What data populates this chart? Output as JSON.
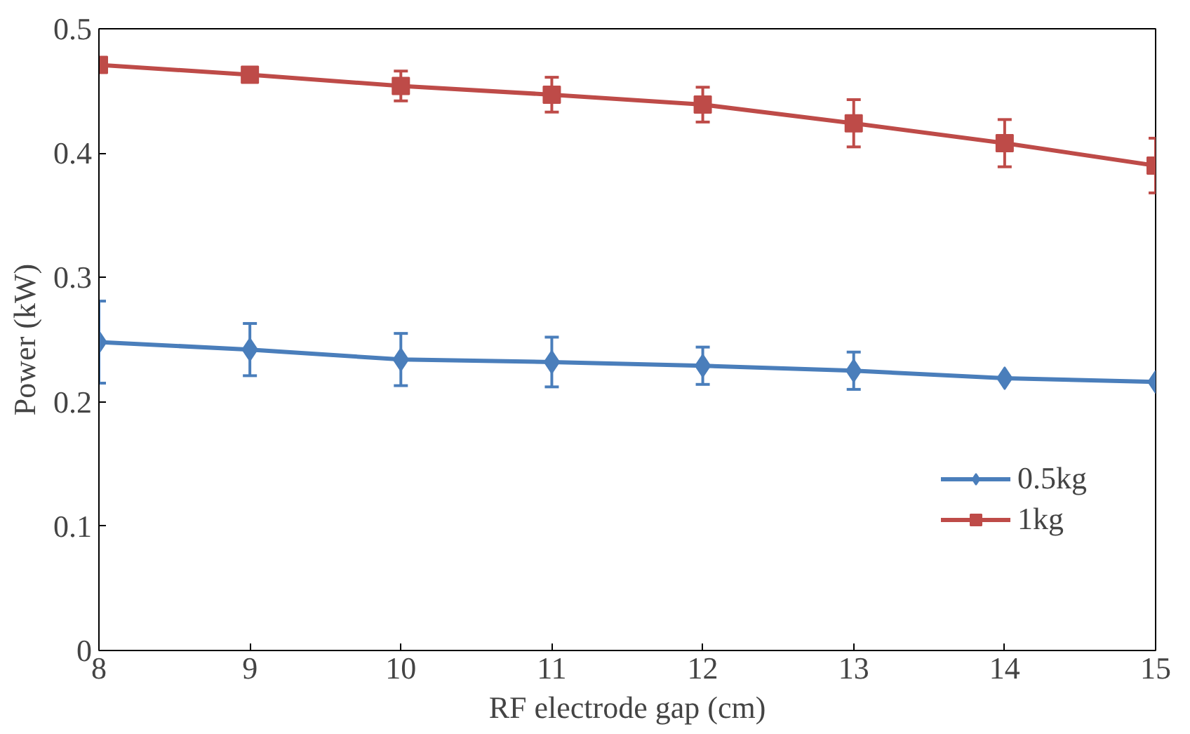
{
  "chart_data": {
    "type": "line",
    "xlabel": "RF electrode gap (cm)",
    "ylabel": "Power (kW)",
    "x": [
      8,
      9,
      10,
      11,
      12,
      13,
      14,
      15
    ],
    "xlim": [
      8,
      15
    ],
    "xticks": [
      8,
      9,
      10,
      11,
      12,
      13,
      14,
      15
    ],
    "ylim": [
      0,
      0.5
    ],
    "yticks": [
      0,
      0.1,
      0.2,
      0.3,
      0.4,
      0.5
    ],
    "grid": false,
    "legend": "right",
    "line_style": "solid",
    "series": [
      {
        "name": "0.5kg",
        "color": "#4a7ebb",
        "marker": "diamond",
        "values": [
          0.248,
          0.242,
          0.234,
          0.232,
          0.229,
          0.225,
          0.219,
          0.216
        ],
        "errors": [
          0.033,
          0.021,
          0.021,
          0.02,
          0.015,
          0.015,
          null,
          null
        ]
      },
      {
        "name": "1kg",
        "color": "#be4b48",
        "marker": "square",
        "values": [
          0.471,
          0.463,
          0.454,
          0.447,
          0.439,
          0.424,
          0.408,
          0.39
        ],
        "errors": [
          null,
          null,
          0.012,
          0.014,
          0.014,
          0.019,
          0.019,
          0.022
        ]
      }
    ]
  }
}
